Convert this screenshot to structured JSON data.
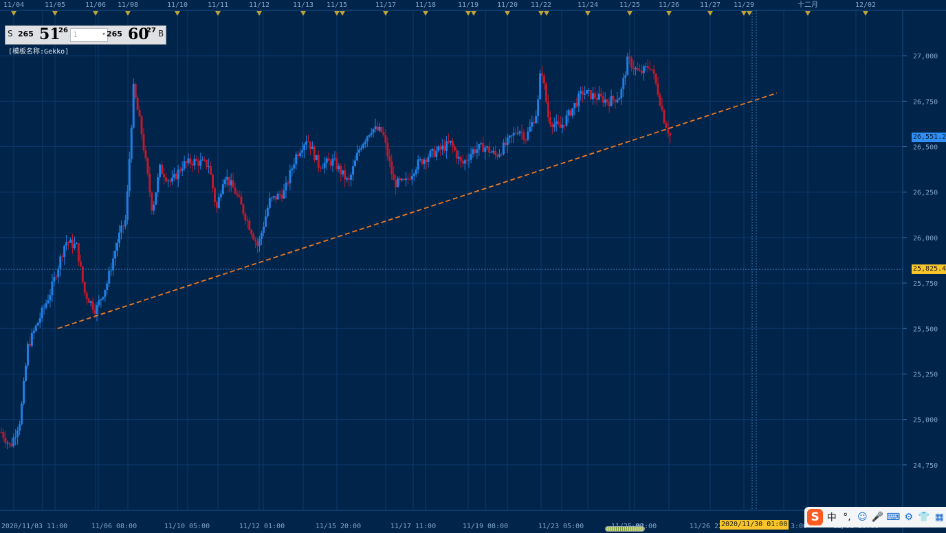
{
  "window": {
    "template_label": "[模板名称:Gekko]"
  },
  "quote": {
    "sell_tag": "S",
    "sell_prefix": "265",
    "sell_main": "51",
    "sell_sup": "26",
    "lot_value": "1",
    "buy_prefix": "265",
    "buy_main": "60",
    "buy_sup": "27",
    "buy_tag": "B"
  },
  "cursor": {
    "time_label": "2020/11/30 01:00",
    "price_label": "25,825.4",
    "price": 25825.4
  },
  "last_price": {
    "label": "26,551.2",
    "value": 26551.2
  },
  "colors": {
    "background": "#01244a",
    "grid": "#0d3a6e",
    "up_candle": "#1f7fe6",
    "down_candle": "#c2182a",
    "trendline": "#f07a22",
    "day_marker": "#bfa23a",
    "last_price_tag": "#2f8ff5",
    "cursor_tag": "#f7c42a"
  },
  "chart_data": {
    "type": "candlestick",
    "ylim": [
      24500,
      27250
    ],
    "yticks": [
      24750,
      25000,
      25250,
      25500,
      25750,
      26000,
      26250,
      26500,
      26750,
      27000
    ],
    "ytick_labels": [
      "24,750",
      "25,000",
      "25,250",
      "25,500",
      "25,750",
      "26,000",
      "26,250",
      "26,500",
      "26,750",
      "27,000"
    ],
    "top_date_labels": [
      "11/04",
      "11/05",
      "11/06",
      "11/08",
      "11/10",
      "11/11",
      "11/12",
      "11/13",
      "11/15",
      "11/17",
      "11/18",
      "11/19",
      "11/20",
      "11/22",
      "11/24",
      "11/25",
      "11/26",
      "11/27",
      "11/29",
      "十二月",
      "12/02"
    ],
    "bottom_time_labels": [
      "2020/11/03 11:00",
      "11/06 08:00",
      "11/10 05:00",
      "11/12 01:00",
      "11/15 20:00",
      "11/17 11:00",
      "11/19 08:00",
      "11/23 05:00",
      "11/25 02:00",
      "11/26 22:00",
      "12/01 20:00"
    ],
    "bottom_time_partial": [
      ":00",
      "3:00"
    ],
    "trendline": {
      "start": [
        0.06,
        25500
      ],
      "end": [
        1.0,
        26795
      ]
    },
    "anchors": [
      [
        0.0,
        24930
      ],
      [
        0.012,
        24850
      ],
      [
        0.025,
        25000
      ],
      [
        0.035,
        25400
      ],
      [
        0.05,
        25550
      ],
      [
        0.065,
        25700
      ],
      [
        0.085,
        25980
      ],
      [
        0.1,
        25950
      ],
      [
        0.11,
        25700
      ],
      [
        0.125,
        25600
      ],
      [
        0.14,
        25750
      ],
      [
        0.155,
        26000
      ],
      [
        0.165,
        26100
      ],
      [
        0.175,
        26820
      ],
      [
        0.185,
        26600
      ],
      [
        0.2,
        26150
      ],
      [
        0.21,
        26380
      ],
      [
        0.225,
        26300
      ],
      [
        0.24,
        26400
      ],
      [
        0.255,
        26420
      ],
      [
        0.275,
        26400
      ],
      [
        0.285,
        26150
      ],
      [
        0.295,
        26350
      ],
      [
        0.31,
        26250
      ],
      [
        0.33,
        26050
      ],
      [
        0.34,
        25950
      ],
      [
        0.355,
        26200
      ],
      [
        0.375,
        26250
      ],
      [
        0.39,
        26450
      ],
      [
        0.405,
        26550
      ],
      [
        0.42,
        26400
      ],
      [
        0.44,
        26420
      ],
      [
        0.46,
        26300
      ],
      [
        0.475,
        26500
      ],
      [
        0.49,
        26600
      ],
      [
        0.505,
        26580
      ],
      [
        0.52,
        26300
      ],
      [
        0.535,
        26300
      ],
      [
        0.55,
        26400
      ],
      [
        0.565,
        26450
      ],
      [
        0.58,
        26480
      ],
      [
        0.595,
        26520
      ],
      [
        0.61,
        26400
      ],
      [
        0.625,
        26480
      ],
      [
        0.64,
        26500
      ],
      [
        0.655,
        26450
      ],
      [
        0.67,
        26520
      ],
      [
        0.685,
        26600
      ],
      [
        0.695,
        26550
      ],
      [
        0.71,
        26700
      ],
      [
        0.715,
        26950
      ],
      [
        0.725,
        26650
      ],
      [
        0.74,
        26600
      ],
      [
        0.755,
        26700
      ],
      [
        0.77,
        26800
      ],
      [
        0.79,
        26770
      ],
      [
        0.805,
        26750
      ],
      [
        0.82,
        26780
      ],
      [
        0.83,
        26980
      ],
      [
        0.845,
        26900
      ],
      [
        0.86,
        26950
      ],
      [
        0.87,
        26800
      ],
      [
        0.878,
        26650
      ],
      [
        0.886,
        26560
      ]
    ]
  },
  "ime": {
    "logo": "S",
    "lang": "中",
    "punct": "°,",
    "smile": "☺",
    "mic": "🎤",
    "keyboard": "⌨",
    "tools": "⚙",
    "shirt": "👕",
    "grid": "▦"
  }
}
